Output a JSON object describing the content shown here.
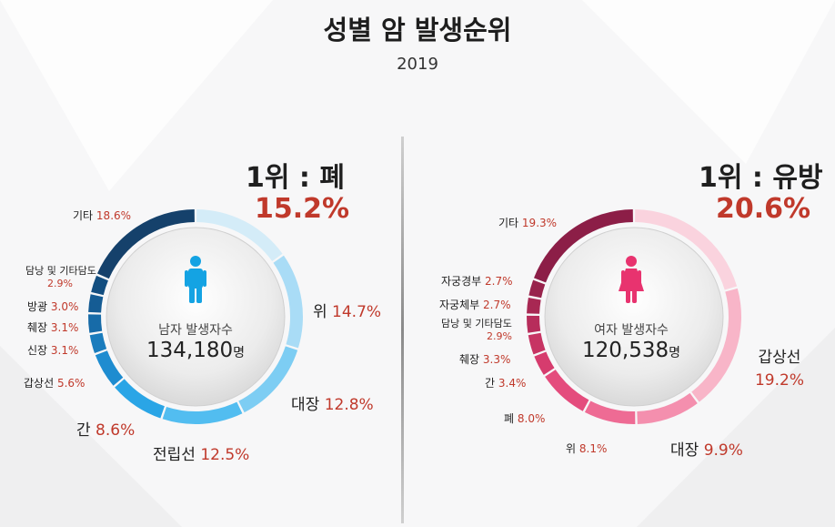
{
  "title": "성별 암 발생순위",
  "year": "2019",
  "chart_data": [
    {
      "type": "pie",
      "rank_label": "1위 : 폐",
      "rank_value": "15.2%",
      "total_caption": "남자 발생자수",
      "total_value": "134,180",
      "total_unit": "명",
      "slices": [
        {
          "name": "폐",
          "value": 15.2,
          "text": "",
          "color": "#d4ecf8"
        },
        {
          "name": "위",
          "value": 14.7,
          "text": "14.7%",
          "color": "#a9dcf6"
        },
        {
          "name": "대장",
          "value": 12.8,
          "text": "12.8%",
          "color": "#7dcdf3"
        },
        {
          "name": "전립선",
          "value": 12.5,
          "text": "12.5%",
          "color": "#52bdf0"
        },
        {
          "name": "간",
          "value": 8.6,
          "text": "8.6%",
          "color": "#2aa5e6"
        },
        {
          "name": "갑상선",
          "value": 5.6,
          "text": "5.6%",
          "color": "#1e8cd0"
        },
        {
          "name": "신장",
          "value": 3.1,
          "text": "3.1%",
          "color": "#1a7cbd"
        },
        {
          "name": "췌장",
          "value": 3.1,
          "text": "3.1%",
          "color": "#176ba8"
        },
        {
          "name": "방광",
          "value": 3.0,
          "text": "3.0%",
          "color": "#155c94"
        },
        {
          "name": "담낭 및 기타담도",
          "value": 2.9,
          "text": "2.9%",
          "color": "#134e80"
        },
        {
          "name": "기타",
          "value": 18.6,
          "text": "18.6%",
          "color": "#15416b"
        }
      ]
    },
    {
      "type": "pie",
      "rank_label": "1위 : 유방",
      "rank_value": "20.6%",
      "total_caption": "여자 발생자수",
      "total_value": "120,538",
      "total_unit": "명",
      "slices": [
        {
          "name": "유방",
          "value": 20.6,
          "text": "",
          "color": "#fad3de"
        },
        {
          "name": "갑상선",
          "value": 19.2,
          "text": "19.2%",
          "color": "#f8b5c8"
        },
        {
          "name": "대장",
          "value": 9.9,
          "text": "9.9%",
          "color": "#f48fae"
        },
        {
          "name": "위",
          "value": 8.1,
          "text": "8.1%",
          "color": "#ee6b94"
        },
        {
          "name": "폐",
          "value": 8.0,
          "text": "8.0%",
          "color": "#e44c7d"
        },
        {
          "name": "간",
          "value": 3.4,
          "text": "3.4%",
          "color": "#d63c6e"
        },
        {
          "name": "췌장",
          "value": 3.3,
          "text": "3.3%",
          "color": "#c73463"
        },
        {
          "name": "담낭 및 기타담도",
          "value": 2.9,
          "text": "2.9%",
          "color": "#b72d5b"
        },
        {
          "name": "자궁체부",
          "value": 2.7,
          "text": "2.7%",
          "color": "#a82853"
        },
        {
          "name": "자궁경부",
          "value": 2.7,
          "text": "2.7%",
          "color": "#98234c"
        },
        {
          "name": "기타",
          "value": 19.3,
          "text": "19.3%",
          "color": "#8c1e47"
        }
      ]
    }
  ]
}
